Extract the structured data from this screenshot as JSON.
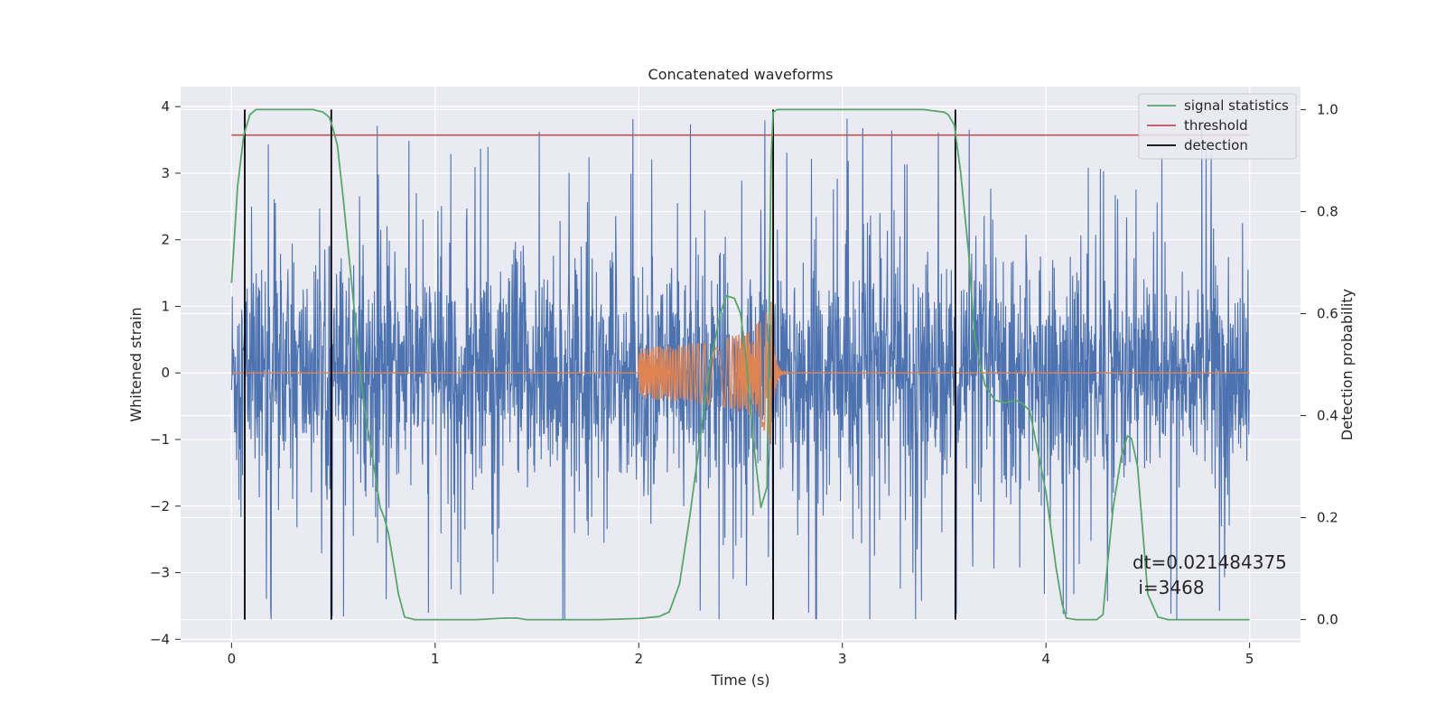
{
  "chart_data": {
    "type": "line",
    "title": "Concatenated waveforms",
    "xlabel": "Time (s)",
    "ylabel": "Whitened strain",
    "y2label": "Detection probability",
    "xlim": [
      -0.25,
      5.25
    ],
    "ylim": [
      -4.05,
      4.3
    ],
    "y2lim": [
      -0.045,
      1.045
    ],
    "x_ticks": [
      0,
      1,
      2,
      3,
      4,
      5
    ],
    "x_tick_labels": [
      "0",
      "1",
      "2",
      "3",
      "4",
      "5"
    ],
    "y_ticks": [
      -4,
      -3,
      -2,
      -1,
      0,
      1,
      2,
      3,
      4
    ],
    "y_tick_labels": [
      "−4",
      "−3",
      "−2",
      "−1",
      "0",
      "1",
      "2",
      "3",
      "4"
    ],
    "y2_ticks": [
      0.0,
      0.2,
      0.4,
      0.6,
      0.8,
      1.0
    ],
    "y2_tick_labels": [
      "0.0",
      "0.2",
      "0.4",
      "0.6",
      "0.8",
      "1.0"
    ],
    "grid": true,
    "legend_position": "top-right",
    "colors": {
      "strain": "#4c72b0",
      "waveform": "#dd8452",
      "signal_statistics": "#55a868",
      "threshold": "#c44e52",
      "detection": "#000000",
      "background": "#eaeaf2",
      "grid": "#ffffff"
    },
    "series": [
      {
        "name": "signal statistics",
        "axis": "right",
        "x": [
          0,
          0.03,
          0.06,
          0.09,
          0.12,
          0.15,
          0.2,
          0.3,
          0.4,
          0.45,
          0.48,
          0.5,
          0.52,
          0.55,
          0.6,
          0.65,
          0.7,
          0.73,
          0.75,
          0.77,
          0.8,
          0.82,
          0.85,
          0.9,
          1.0,
          1.2,
          1.35,
          1.4,
          1.45,
          1.6,
          1.8,
          2.0,
          2.1,
          2.15,
          2.2,
          2.25,
          2.3,
          2.35,
          2.4,
          2.43,
          2.47,
          2.5,
          2.53,
          2.56,
          2.6,
          2.63,
          2.65,
          2.66,
          2.68,
          2.7,
          2.75,
          2.8,
          3.0,
          3.2,
          3.4,
          3.5,
          3.52,
          3.55,
          3.58,
          3.62,
          3.65,
          3.7,
          3.75,
          3.8,
          3.85,
          3.88,
          3.92,
          3.95,
          4.0,
          4.05,
          4.08,
          4.1,
          4.15,
          4.22,
          4.25,
          4.28,
          4.3,
          4.33,
          4.37,
          4.4,
          4.42,
          4.45,
          4.5,
          4.55,
          4.6,
          4.7,
          5.0
        ],
        "y": [
          0.66,
          0.85,
          0.95,
          0.99,
          1.0,
          1.0,
          1.0,
          1.0,
          1.0,
          0.995,
          0.985,
          0.96,
          0.93,
          0.82,
          0.62,
          0.42,
          0.3,
          0.22,
          0.2,
          0.17,
          0.1,
          0.05,
          0.005,
          0.0,
          0.0,
          0.0,
          0.003,
          0.003,
          0.0,
          0.0,
          0.0,
          0.002,
          0.006,
          0.015,
          0.07,
          0.2,
          0.35,
          0.5,
          0.6,
          0.635,
          0.63,
          0.6,
          0.5,
          0.36,
          0.22,
          0.26,
          0.9,
          0.995,
          1.0,
          1.0,
          1.0,
          1.0,
          1.0,
          1.0,
          1.0,
          0.995,
          0.99,
          0.97,
          0.88,
          0.72,
          0.55,
          0.46,
          0.43,
          0.425,
          0.43,
          0.425,
          0.41,
          0.35,
          0.25,
          0.1,
          0.03,
          0.003,
          0.0,
          0.0,
          0.0,
          0.01,
          0.1,
          0.22,
          0.32,
          0.36,
          0.355,
          0.3,
          0.05,
          0.005,
          0.0,
          0.0,
          0.0
        ]
      },
      {
        "name": "threshold",
        "axis": "right",
        "x": [
          0,
          5
        ],
        "y": [
          0.95,
          0.95
        ]
      },
      {
        "name": "detection",
        "axis": "right",
        "x": [
          0.065,
          0.49,
          2.66,
          3.555
        ],
        "y_range": [
          0,
          1
        ]
      },
      {
        "name": "strain",
        "axis": "left",
        "x_range": [
          0,
          5
        ],
        "typical_amplitude": 1.1,
        "peak_amplitude": 3.9
      },
      {
        "name": "waveform",
        "axis": "left",
        "x_range": [
          0,
          5
        ],
        "chirp_start": 2.0,
        "merger_time": 2.66,
        "chirp_start_amplitude": 0.25,
        "merger_amplitude": 1.3
      }
    ],
    "annotation": "dt=0.021484375\n i=3468"
  },
  "legend": [
    {
      "label": "signal statistics",
      "color": "#55a868"
    },
    {
      "label": "threshold",
      "color": "#c44e52"
    },
    {
      "label": "detection",
      "color": "#000000"
    }
  ]
}
